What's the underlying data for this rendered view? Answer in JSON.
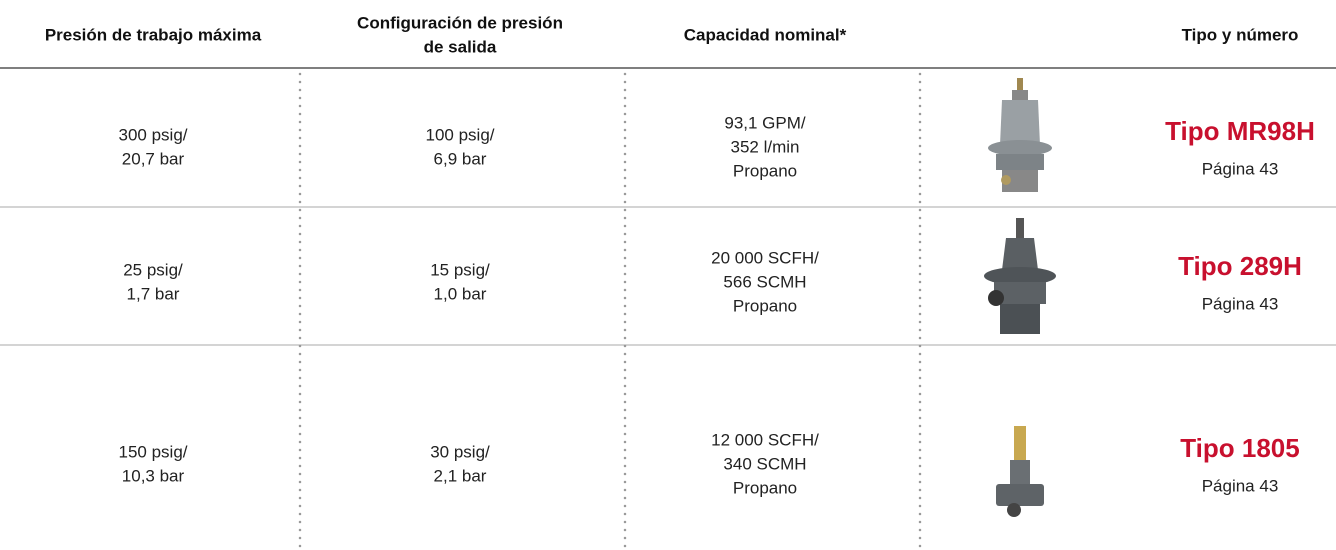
{
  "table": {
    "headers": [
      [
        "Presión de trabajo máxima"
      ],
      [
        "Configuración de presión",
        "de salida"
      ],
      [
        "Capacidad nominal*"
      ],
      [
        "Tipo y número"
      ]
    ],
    "rows": [
      {
        "cells": [
          [
            "300 psig/",
            "20,7 bar"
          ],
          [
            "100 psig/",
            "6,9 bar"
          ],
          [
            "93,1 GPM/",
            "352 l/min",
            "Propano"
          ]
        ],
        "type": "Tipo MR98H",
        "page": "Página 43"
      },
      {
        "cells": [
          [
            "25 psig/",
            "1,7 bar"
          ],
          [
            "15 psig/",
            "1,0 bar"
          ],
          [
            "20 000 SCFH/",
            "566 SCMH",
            "Propano"
          ]
        ],
        "type": "Tipo 289H",
        "page": "Página 43"
      },
      {
        "cells": [
          [
            "150 psig/",
            "10,3 bar"
          ],
          [
            "30 psig/",
            "2,1 bar"
          ],
          [
            "12 000 SCFH/",
            "340 SCMH",
            "Propano"
          ]
        ],
        "type": "Tipo 1805",
        "page": "Página 43"
      }
    ]
  }
}
